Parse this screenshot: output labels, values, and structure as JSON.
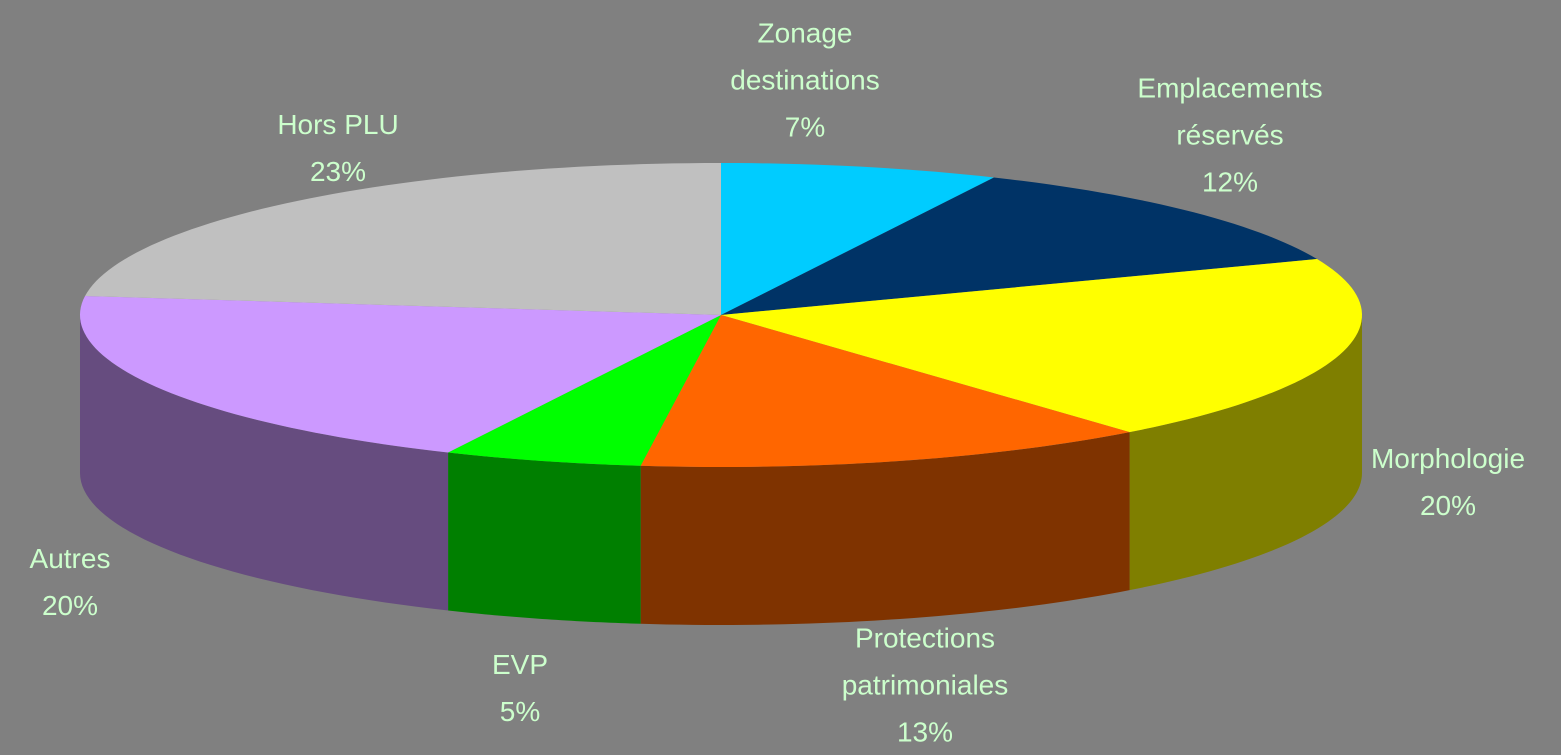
{
  "chart_data": {
    "type": "pie",
    "categories": [
      "Zonage destinations",
      "Emplacements réservés",
      "Morphologie",
      "Protections patrimoniales",
      "EVP",
      "Autres",
      "Hors PLU"
    ],
    "values": [
      7,
      12,
      20,
      13,
      5,
      20,
      23
    ],
    "value_labels": [
      "7%",
      "12%",
      "20%",
      "13%",
      "5%",
      "20%",
      "23%"
    ],
    "colors": [
      "#00ccff",
      "#003366",
      "#ffff00",
      "#ff6600",
      "#00ff00",
      "#cc99ff",
      "#c0c0c0"
    ]
  }
}
